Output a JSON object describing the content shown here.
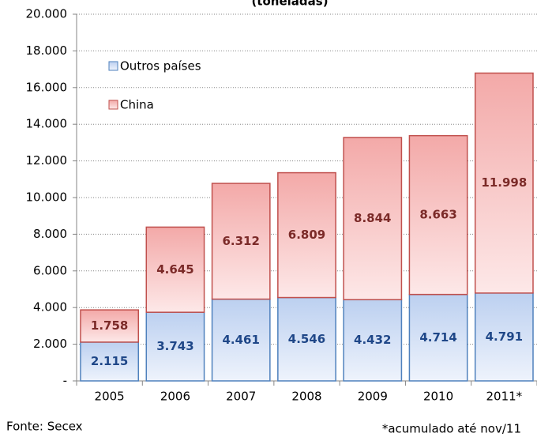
{
  "chart_data": {
    "type": "stacked-bar",
    "title": "(toneladas)",
    "categories": [
      "2005",
      "2006",
      "2007",
      "2008",
      "2009",
      "2010",
      "2011*"
    ],
    "series": [
      {
        "name": "Outros países",
        "color": "#4f81bd",
        "label_color": "#1f4788",
        "values": [
          2115,
          3743,
          4461,
          4546,
          4432,
          4714,
          4791
        ],
        "value_labels": [
          "2.115",
          "3.743",
          "4.461",
          "4.546",
          "4.432",
          "4.714",
          "4.791"
        ]
      },
      {
        "name": "China",
        "color": "#c0504d",
        "label_color": "#7b2a28",
        "values": [
          1758,
          4645,
          6312,
          6809,
          8844,
          8663,
          11998
        ],
        "value_labels": [
          "1.758",
          "4.645",
          "6.312",
          "6.809",
          "8.844",
          "8.663",
          "11.998"
        ]
      }
    ],
    "ylim": [
      0,
      20000
    ],
    "yticks": [
      {
        "value": 0,
        "label": "-"
      },
      {
        "value": 2000,
        "label": "2.000"
      },
      {
        "value": 4000,
        "label": "4.000"
      },
      {
        "value": 6000,
        "label": "6.000"
      },
      {
        "value": 8000,
        "label": "8.000"
      },
      {
        "value": 10000,
        "label": "10.000"
      },
      {
        "value": 12000,
        "label": "12.000"
      },
      {
        "value": 14000,
        "label": "14.000"
      },
      {
        "value": 16000,
        "label": "16.000"
      },
      {
        "value": 18000,
        "label": "18.000"
      },
      {
        "value": 20000,
        "label": "20.000"
      }
    ],
    "grid": true,
    "legend": "upper left",
    "source": "Fonte: Secex",
    "note": "*acumulado até nov/11"
  }
}
